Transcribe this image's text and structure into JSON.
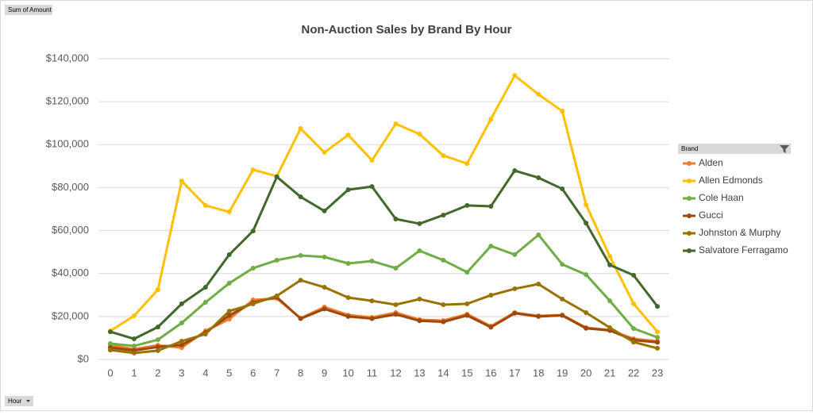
{
  "chart_data": {
    "type": "line",
    "title": "Non-Auction Sales by Brand By Hour",
    "value_field": "Sum of Amount",
    "axis_field": "Hour",
    "legend_title": "Brand",
    "legend_position": "right",
    "grid": true,
    "categories": [
      "0",
      "1",
      "2",
      "3",
      "4",
      "5",
      "6",
      "7",
      "8",
      "9",
      "10",
      "11",
      "12",
      "13",
      "14",
      "15",
      "16",
      "17",
      "18",
      "19",
      "20",
      "21",
      "22",
      "23"
    ],
    "ylim": [
      0,
      140000
    ],
    "yticks": [
      {
        "value": 0,
        "label": "$0"
      },
      {
        "value": 20000,
        "label": "$20,000"
      },
      {
        "value": 40000,
        "label": "$40,000"
      },
      {
        "value": 60000,
        "label": "$60,000"
      },
      {
        "value": 80000,
        "label": "$80,000"
      },
      {
        "value": 100000,
        "label": "$100,000"
      },
      {
        "value": 120000,
        "label": "$120,000"
      },
      {
        "value": 140000,
        "label": "$140,000"
      }
    ],
    "series": [
      {
        "name": "Alden",
        "color": "#ed7d31",
        "values": [
          6600,
          4800,
          6600,
          5500,
          13300,
          18800,
          27700,
          28400,
          19200,
          24400,
          20700,
          19600,
          21800,
          18500,
          18100,
          21100,
          15500,
          21800,
          20300,
          20700,
          14800,
          13700,
          9600,
          8500
        ]
      },
      {
        "name": "Allen Edmonds",
        "color": "#ffc000",
        "values": [
          13300,
          20300,
          32500,
          83100,
          71700,
          68700,
          88300,
          85300,
          107500,
          96400,
          104500,
          92700,
          109700,
          104900,
          94900,
          91200,
          111900,
          132200,
          123400,
          115600,
          72000,
          48000,
          25900,
          12900
        ]
      },
      {
        "name": "Cole Haan",
        "color": "#70ad47",
        "values": [
          7400,
          6300,
          9200,
          17000,
          26600,
          35500,
          42500,
          46200,
          48400,
          47700,
          44700,
          45800,
          42500,
          50600,
          46200,
          40600,
          52800,
          48800,
          58000,
          44300,
          39500,
          27300,
          14400,
          10300
        ]
      },
      {
        "name": "Gucci",
        "color": "#9e480e",
        "values": [
          5500,
          4200,
          5800,
          6800,
          12500,
          20500,
          26500,
          29000,
          19000,
          23500,
          20000,
          19000,
          21000,
          18000,
          17500,
          20500,
          15000,
          21500,
          20000,
          20500,
          14500,
          13500,
          9000,
          8000
        ]
      },
      {
        "name": "Johnston & Murphy",
        "color": "#997300",
        "values": [
          4400,
          3000,
          4100,
          8500,
          11800,
          22500,
          25900,
          29600,
          36900,
          33600,
          28800,
          27300,
          25500,
          28100,
          25500,
          25900,
          29900,
          32900,
          35100,
          28100,
          21800,
          14800,
          8100,
          5200
        ]
      },
      {
        "name": "Salvatore Ferragamo",
        "color": "#43682b",
        "values": [
          12900,
          9600,
          15100,
          25900,
          33600,
          48800,
          59800,
          85000,
          75700,
          69100,
          79000,
          80500,
          65400,
          63200,
          67200,
          71700,
          71300,
          87900,
          84600,
          79400,
          63500,
          44000,
          39200,
          24700
        ]
      }
    ]
  }
}
